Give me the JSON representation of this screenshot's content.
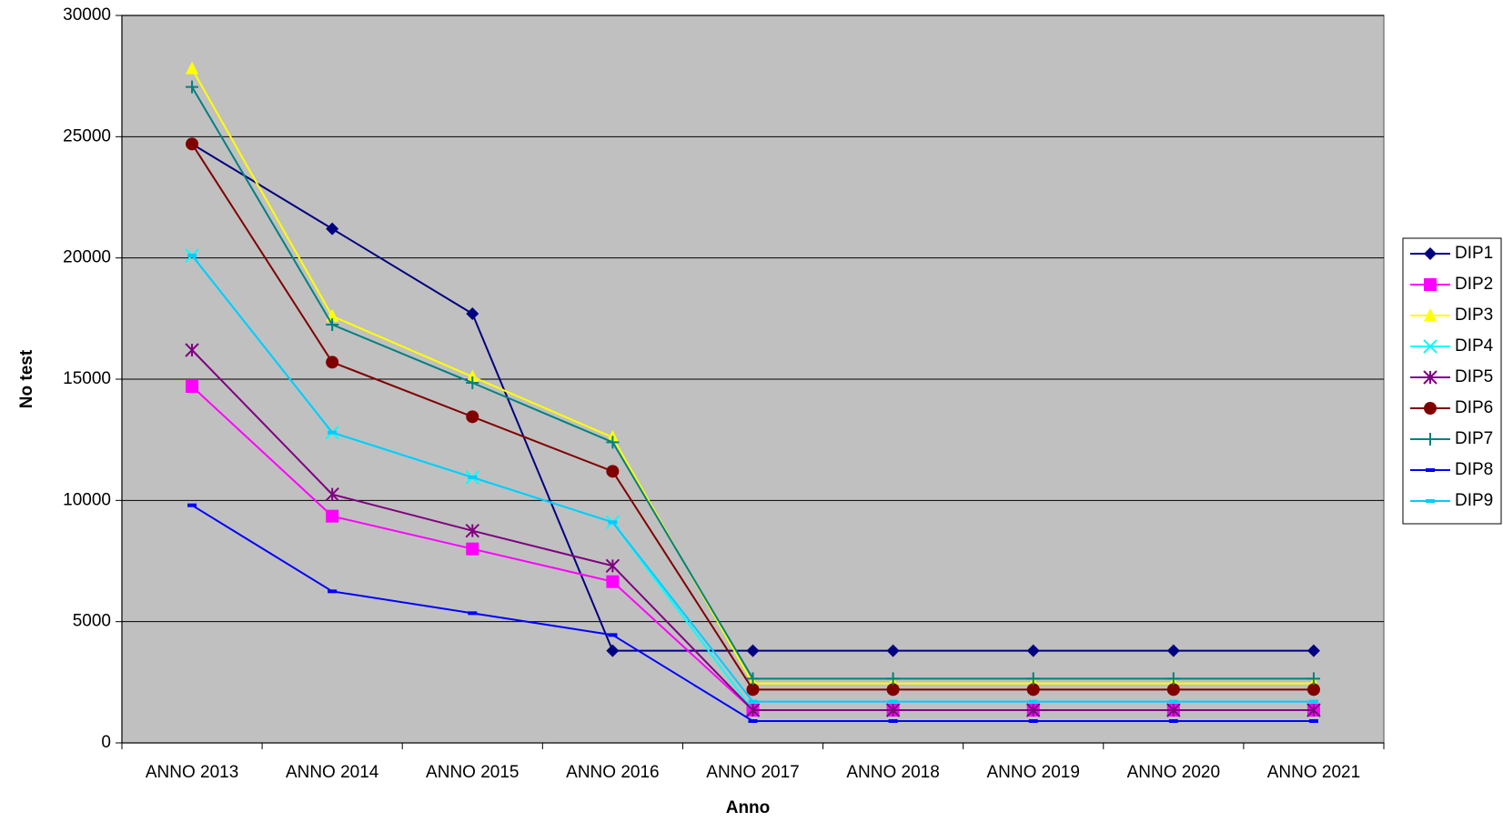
{
  "chart_data": {
    "type": "line",
    "x_label": "Anno",
    "y_label": "No test",
    "categories": [
      "ANNO 2013",
      "ANNO 2014",
      "ANNO 2015",
      "ANNO 2016",
      "ANNO 2017",
      "ANNO 2018",
      "ANNO 2019",
      "ANNO 2020",
      "ANNO 2021"
    ],
    "ylim": [
      0,
      30000
    ],
    "yticks": [
      0,
      5000,
      10000,
      15000,
      20000,
      25000,
      30000
    ],
    "grid": true,
    "legend": "right",
    "background": "#c0c0c0",
    "series": [
      {
        "name": "DIP1",
        "color": "#000080",
        "marker": "diamond",
        "values": [
          24700,
          21200,
          17700,
          3800,
          3800,
          3800,
          3800,
          3800,
          3800
        ]
      },
      {
        "name": "DIP2",
        "color": "#ff00ff",
        "marker": "square",
        "values": [
          14700,
          9350,
          8000,
          6650,
          1350,
          1350,
          1350,
          1350,
          1350
        ]
      },
      {
        "name": "DIP3",
        "color": "#ffff00",
        "marker": "triangle",
        "values": [
          27800,
          17600,
          15100,
          12600,
          2450,
          2450,
          2450,
          2450,
          2450
        ]
      },
      {
        "name": "DIP4",
        "color": "#00ffff",
        "marker": "x",
        "values": [
          20100,
          12800,
          10950,
          9100,
          1350,
          1350,
          1350,
          1350,
          1350
        ]
      },
      {
        "name": "DIP5",
        "color": "#800080",
        "marker": "star",
        "values": [
          16200,
          10250,
          8750,
          7300,
          1350,
          1350,
          1350,
          1350,
          1350
        ]
      },
      {
        "name": "DIP6",
        "color": "#800000",
        "marker": "circle",
        "values": [
          24700,
          15700,
          13450,
          11200,
          2200,
          2200,
          2200,
          2200,
          2200
        ]
      },
      {
        "name": "DIP7",
        "color": "#008080",
        "marker": "plus",
        "values": [
          27050,
          17250,
          14850,
          12400,
          2650,
          2650,
          2650,
          2650,
          2650
        ]
      },
      {
        "name": "DIP8",
        "color": "#0000ff",
        "marker": "dash",
        "values": [
          9800,
          6250,
          5350,
          4450,
          900,
          900,
          900,
          900,
          900
        ]
      },
      {
        "name": "DIP9",
        "color": "#00ccff",
        "marker": "dash",
        "values": [
          20100,
          12800,
          10950,
          9100,
          1700,
          1700,
          1700,
          1700,
          1700
        ]
      }
    ]
  }
}
